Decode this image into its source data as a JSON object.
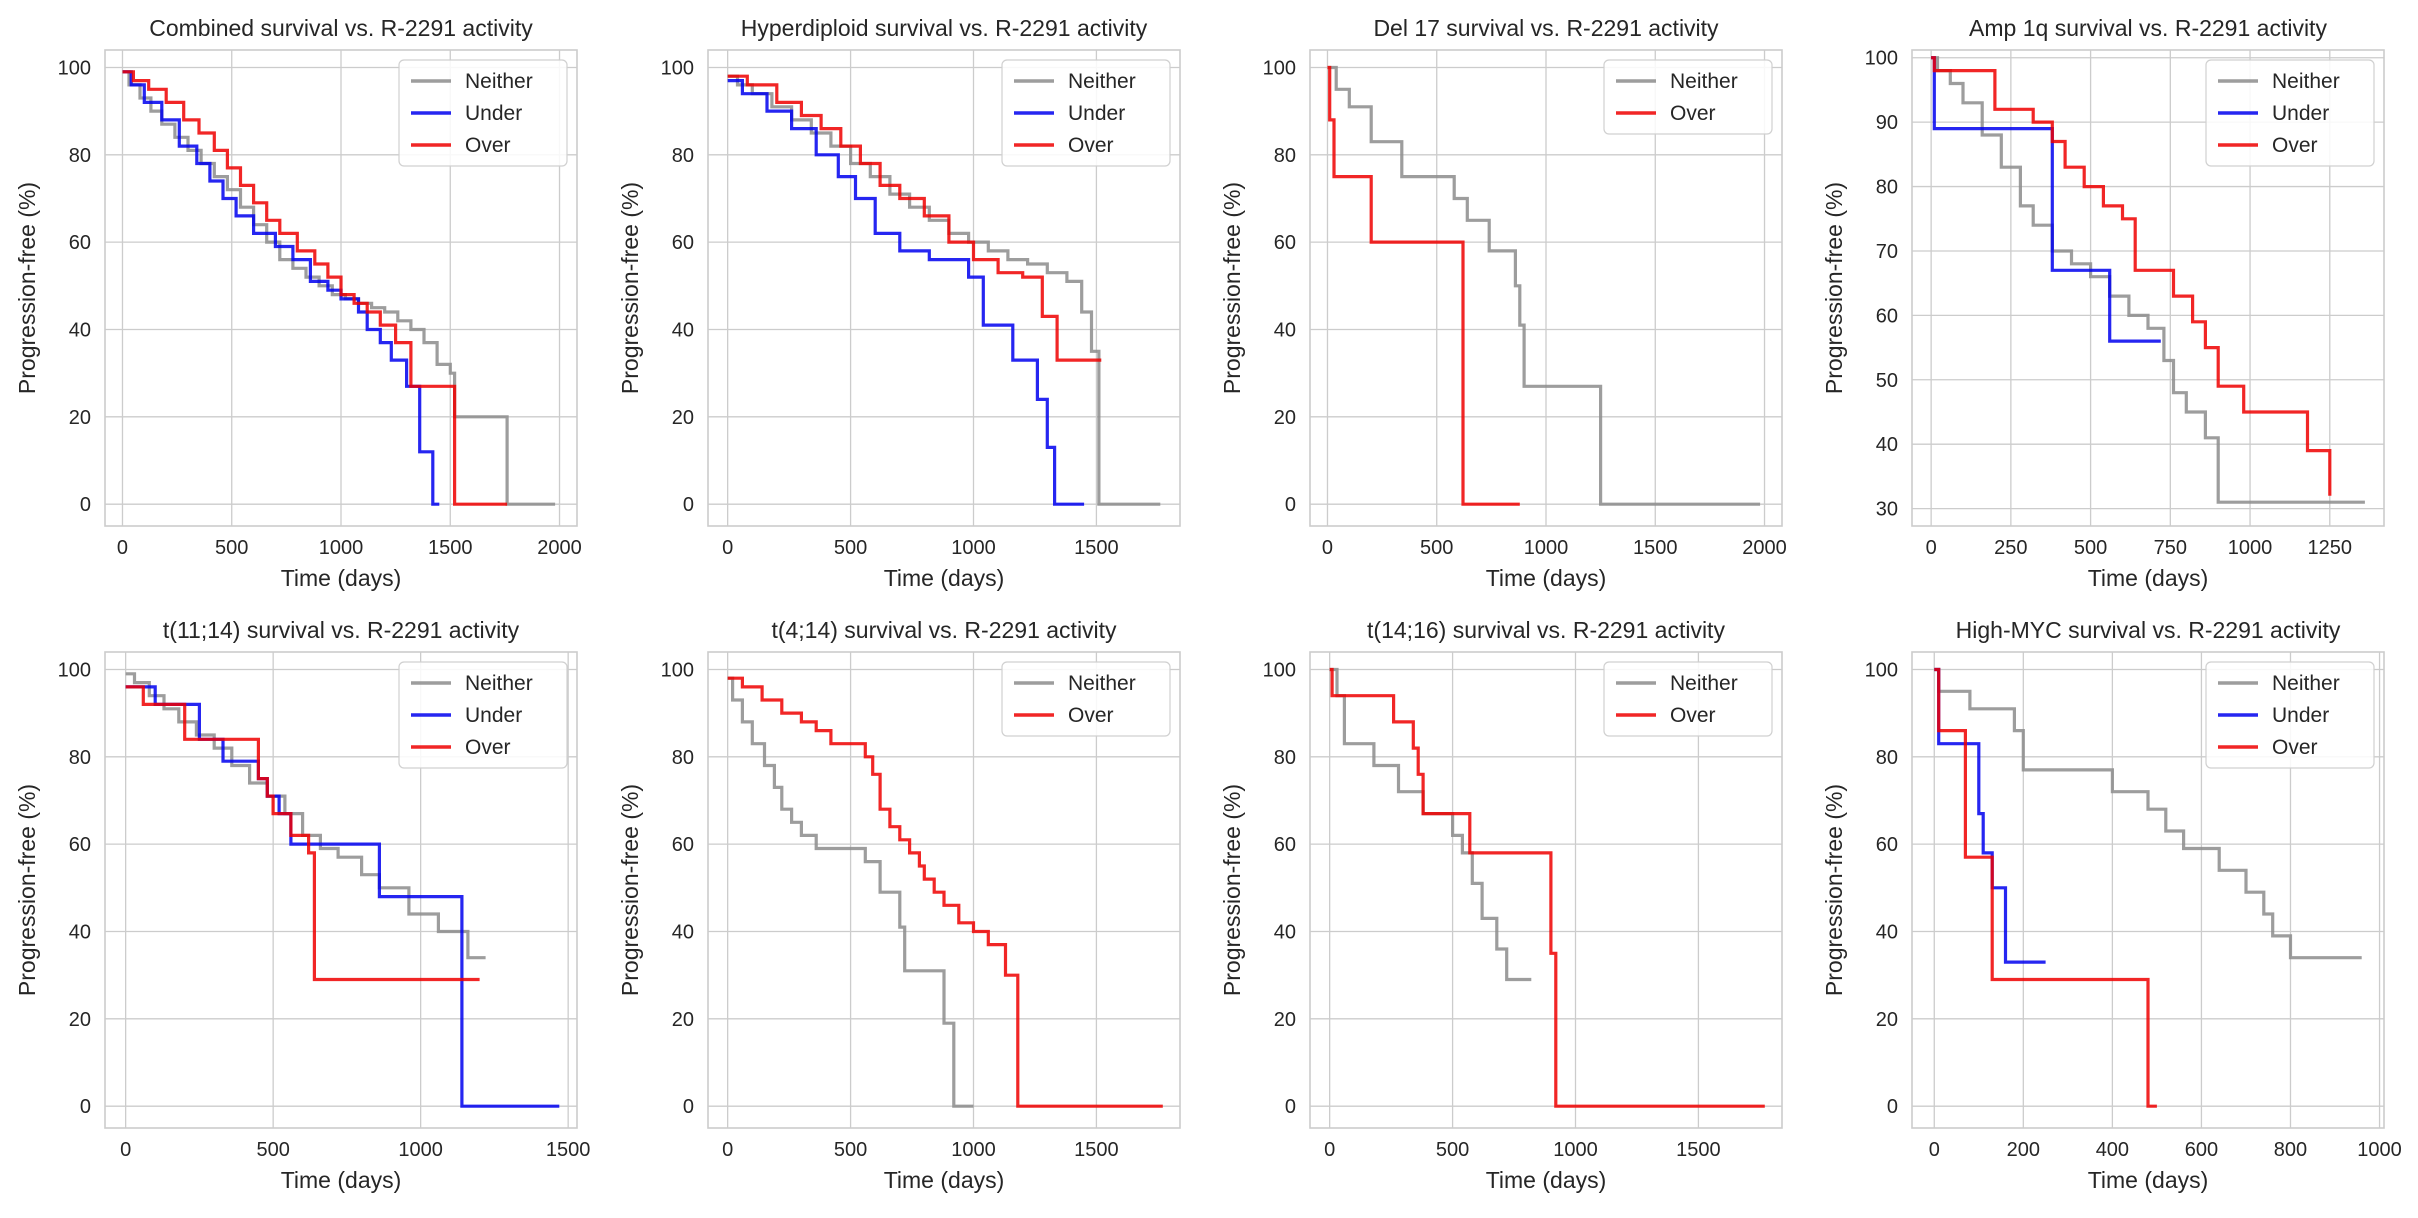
{
  "figure": {
    "background": "#ffffff",
    "grid_color": "#cccccc",
    "frame_color": "#cccccc"
  },
  "colors": {
    "Neither": "#8c8c8c",
    "Under": "#0000ee",
    "Over": "#ee0000"
  },
  "chart_data": [
    {
      "type": "line",
      "step": true,
      "title": "Combined survival vs. R-2291 activity",
      "xlabel": "Time (days)",
      "ylabel": "Progression-free (%)",
      "xlim": [
        -80,
        2080
      ],
      "ylim": [
        -5,
        104
      ],
      "xticks": [
        0,
        500,
        1000,
        1500,
        2000
      ],
      "yticks": [
        0,
        20,
        40,
        60,
        80,
        100
      ],
      "grid": true,
      "legend": "top-right",
      "series": [
        {
          "name": "Neither",
          "x": [
            0,
            30,
            80,
            130,
            180,
            240,
            300,
            360,
            420,
            480,
            540,
            600,
            660,
            720,
            780,
            840,
            900,
            960,
            1020,
            1080,
            1140,
            1200,
            1260,
            1320,
            1380,
            1440,
            1500,
            1520,
            1760,
            1980
          ],
          "y": [
            99,
            96,
            93,
            90,
            87,
            84,
            81,
            78,
            75,
            72,
            68,
            64,
            60,
            56,
            54,
            52,
            50,
            48,
            47,
            46,
            45,
            44,
            42,
            40,
            37,
            32,
            30,
            20,
            0,
            0
          ]
        },
        {
          "name": "Under",
          "x": [
            0,
            40,
            100,
            180,
            260,
            340,
            400,
            460,
            520,
            600,
            700,
            780,
            860,
            940,
            1000,
            1080,
            1120,
            1180,
            1230,
            1300,
            1360,
            1420,
            1450
          ],
          "y": [
            99,
            96,
            92,
            88,
            82,
            78,
            74,
            70,
            66,
            62,
            59,
            56,
            51,
            49,
            47,
            44,
            40,
            37,
            33,
            27,
            12,
            0,
            0
          ]
        },
        {
          "name": "Over",
          "x": [
            0,
            50,
            120,
            200,
            280,
            350,
            420,
            480,
            540,
            600,
            660,
            720,
            800,
            880,
            940,
            1000,
            1060,
            1120,
            1180,
            1250,
            1320,
            1520,
            1760
          ],
          "y": [
            99,
            97,
            95,
            92,
            88,
            85,
            81,
            77,
            73,
            69,
            65,
            62,
            58,
            55,
            52,
            48,
            46,
            44,
            41,
            37,
            27,
            0,
            0
          ]
        }
      ]
    },
    {
      "type": "line",
      "step": true,
      "title": "Hyperdiploid survival vs. R-2291 activity",
      "xlabel": "Time (days)",
      "ylabel": "Progression-free (%)",
      "xlim": [
        -80,
        1840
      ],
      "ylim": [
        -5,
        104
      ],
      "xticks": [
        0,
        500,
        1000,
        1500
      ],
      "yticks": [
        0,
        20,
        40,
        60,
        80,
        100
      ],
      "grid": true,
      "legend": "top-right",
      "series": [
        {
          "name": "Neither",
          "x": [
            0,
            40,
            100,
            180,
            260,
            340,
            420,
            500,
            580,
            660,
            740,
            820,
            900,
            980,
            1060,
            1140,
            1220,
            1300,
            1380,
            1440,
            1480,
            1510,
            1760
          ],
          "y": [
            98,
            96,
            94,
            91,
            88,
            85,
            82,
            78,
            75,
            71,
            68,
            65,
            62,
            60,
            58,
            56,
            55,
            53,
            51,
            44,
            35,
            0,
            0
          ]
        },
        {
          "name": "Under",
          "x": [
            0,
            60,
            160,
            260,
            360,
            450,
            520,
            600,
            700,
            820,
            980,
            1040,
            1160,
            1260,
            1300,
            1330,
            1450
          ],
          "y": [
            97,
            94,
            90,
            86,
            80,
            75,
            70,
            62,
            58,
            56,
            52,
            41,
            33,
            24,
            13,
            0,
            0
          ]
        },
        {
          "name": "Over",
          "x": [
            0,
            80,
            200,
            300,
            380,
            460,
            540,
            620,
            700,
            800,
            900,
            1000,
            1100,
            1200,
            1280,
            1340,
            1440,
            1520
          ],
          "y": [
            98,
            96,
            92,
            89,
            86,
            82,
            78,
            73,
            70,
            66,
            60,
            56,
            53,
            52,
            43,
            33,
            33,
            33
          ]
        }
      ]
    },
    {
      "type": "line",
      "step": true,
      "title": "Del 17 survival vs. R-2291 activity",
      "xlabel": "Time (days)",
      "ylabel": "Progression-free (%)",
      "xlim": [
        -80,
        2080
      ],
      "ylim": [
        -5,
        104
      ],
      "xticks": [
        0,
        500,
        1000,
        1500,
        2000
      ],
      "yticks": [
        0,
        20,
        40,
        60,
        80,
        100
      ],
      "grid": true,
      "legend": "top-right",
      "series": [
        {
          "name": "Neither",
          "x": [
            0,
            40,
            100,
            200,
            340,
            580,
            640,
            740,
            860,
            880,
            900,
            1250,
            1980
          ],
          "y": [
            100,
            95,
            91,
            83,
            75,
            70,
            65,
            58,
            50,
            41,
            27,
            0,
            0
          ]
        },
        {
          "name": "Over",
          "x": [
            0,
            10,
            30,
            200,
            600,
            620,
            880
          ],
          "y": [
            100,
            88,
            75,
            60,
            60,
            0,
            0
          ]
        }
      ]
    },
    {
      "type": "line",
      "step": true,
      "title": "Amp 1q survival vs. R-2291 activity",
      "xlabel": "Time (days)",
      "ylabel": "Progression-free (%)",
      "xlim": [
        -60,
        1420
      ],
      "ylim": [
        27.3,
        101.2
      ],
      "xticks": [
        0,
        250,
        500,
        750,
        1000,
        1250
      ],
      "yticks": [
        30,
        40,
        50,
        60,
        70,
        80,
        90,
        100
      ],
      "grid": true,
      "legend": "top-right",
      "series": [
        {
          "name": "Neither",
          "x": [
            0,
            20,
            60,
            100,
            160,
            220,
            280,
            320,
            380,
            440,
            500,
            560,
            620,
            680,
            730,
            760,
            800,
            860,
            900,
            1360
          ],
          "y": [
            100,
            98,
            96,
            93,
            88,
            83,
            77,
            74,
            70,
            68,
            66,
            63,
            60,
            58,
            53,
            48,
            45,
            41,
            31,
            31
          ]
        },
        {
          "name": "Under",
          "x": [
            0,
            10,
            360,
            380,
            550,
            560,
            720
          ],
          "y": [
            100,
            89,
            89,
            67,
            67,
            56,
            56
          ]
        },
        {
          "name": "Over",
          "x": [
            0,
            10,
            200,
            320,
            380,
            420,
            480,
            540,
            600,
            640,
            760,
            820,
            860,
            900,
            980,
            1180,
            1250
          ],
          "y": [
            100,
            98,
            92,
            90,
            87,
            83,
            80,
            77,
            75,
            67,
            63,
            59,
            55,
            49,
            45,
            39,
            32
          ]
        }
      ]
    },
    {
      "type": "line",
      "step": true,
      "title": "t(11;14) survival vs. R-2291 activity",
      "xlabel": "Time (days)",
      "ylabel": "Progression-free (%)",
      "xlim": [
        -70,
        1530
      ],
      "ylim": [
        -5,
        104
      ],
      "xticks": [
        0,
        500,
        1000,
        1500
      ],
      "yticks": [
        0,
        20,
        40,
        60,
        80,
        100
      ],
      "grid": true,
      "legend": "top-right",
      "series": [
        {
          "name": "Neither",
          "x": [
            0,
            30,
            80,
            130,
            180,
            240,
            300,
            360,
            420,
            480,
            540,
            600,
            660,
            720,
            800,
            860,
            960,
            1060,
            1160,
            1220
          ],
          "y": [
            99,
            97,
            94,
            91,
            88,
            85,
            82,
            78,
            74,
            71,
            67,
            62,
            59,
            57,
            53,
            50,
            44,
            40,
            34,
            34
          ]
        },
        {
          "name": "Under",
          "x": [
            0,
            100,
            250,
            330,
            450,
            480,
            520,
            560,
            860,
            1120,
            1140,
            1470
          ],
          "y": [
            96,
            92,
            84,
            79,
            75,
            71,
            67,
            60,
            48,
            48,
            0,
            0
          ]
        },
        {
          "name": "Over",
          "x": [
            0,
            60,
            200,
            450,
            480,
            500,
            560,
            620,
            640,
            1200
          ],
          "y": [
            96,
            92,
            84,
            75,
            71,
            67,
            62,
            58,
            29,
            29
          ]
        }
      ]
    },
    {
      "type": "line",
      "step": true,
      "title": "t(4;14) survival vs. R-2291 activity",
      "xlabel": "Time (days)",
      "ylabel": "Progression-free (%)",
      "xlim": [
        -80,
        1840
      ],
      "ylim": [
        -5,
        104
      ],
      "xticks": [
        0,
        500,
        1000,
        1500
      ],
      "yticks": [
        0,
        20,
        40,
        60,
        80,
        100
      ],
      "grid": true,
      "legend": "top-right",
      "series": [
        {
          "name": "Neither",
          "x": [
            0,
            20,
            60,
            100,
            150,
            190,
            220,
            260,
            300,
            360,
            420,
            560,
            620,
            700,
            720,
            760,
            880,
            920,
            950,
            1000
          ],
          "y": [
            98,
            93,
            88,
            83,
            78,
            73,
            68,
            65,
            62,
            59,
            59,
            56,
            49,
            41,
            31,
            31,
            19,
            0,
            0,
            0
          ]
        },
        {
          "name": "Over",
          "x": [
            0,
            60,
            140,
            220,
            300,
            360,
            420,
            560,
            590,
            620,
            660,
            700,
            740,
            780,
            800,
            840,
            880,
            940,
            1000,
            1060,
            1130,
            1180,
            1770
          ],
          "y": [
            98,
            96,
            93,
            90,
            88,
            86,
            83,
            80,
            76,
            68,
            64,
            61,
            58,
            55,
            52,
            49,
            46,
            42,
            40,
            37,
            30,
            0,
            0
          ]
        }
      ]
    },
    {
      "type": "line",
      "step": true,
      "title": "t(14;16) survival vs. R-2291 activity",
      "xlabel": "Time (days)",
      "ylabel": "Progression-free (%)",
      "xlim": [
        -80,
        1840
      ],
      "ylim": [
        -5,
        104
      ],
      "xticks": [
        0,
        500,
        1000,
        1500
      ],
      "yticks": [
        0,
        20,
        40,
        60,
        80,
        100
      ],
      "grid": true,
      "legend": "top-right",
      "series": [
        {
          "name": "Neither",
          "x": [
            0,
            30,
            60,
            180,
            280,
            380,
            500,
            540,
            580,
            620,
            680,
            720,
            820
          ],
          "y": [
            100,
            94,
            83,
            78,
            72,
            67,
            62,
            58,
            51,
            43,
            36,
            29,
            29
          ]
        },
        {
          "name": "Over",
          "x": [
            0,
            10,
            260,
            340,
            360,
            380,
            570,
            860,
            900,
            920,
            1770
          ],
          "y": [
            100,
            94,
            88,
            82,
            76,
            67,
            58,
            58,
            35,
            0,
            0
          ]
        }
      ]
    },
    {
      "type": "line",
      "step": true,
      "title": "High-MYC survival vs. R-2291 activity",
      "xlabel": "Time (days)",
      "ylabel": "Progression-free (%)",
      "xlim": [
        -50,
        1010
      ],
      "ylim": [
        -5,
        104
      ],
      "xticks": [
        0,
        200,
        400,
        600,
        800,
        1000
      ],
      "yticks": [
        0,
        20,
        40,
        60,
        80,
        100
      ],
      "grid": true,
      "legend": "top-right",
      "series": [
        {
          "name": "Neither",
          "x": [
            0,
            10,
            80,
            180,
            200,
            400,
            480,
            520,
            560,
            640,
            700,
            740,
            760,
            800,
            960
          ],
          "y": [
            100,
            95,
            91,
            86,
            77,
            72,
            68,
            63,
            59,
            54,
            49,
            44,
            39,
            34,
            34
          ]
        },
        {
          "name": "Under",
          "x": [
            0,
            10,
            100,
            110,
            130,
            160,
            250
          ],
          "y": [
            100,
            83,
            67,
            58,
            50,
            33,
            33
          ]
        },
        {
          "name": "Over",
          "x": [
            0,
            10,
            70,
            130,
            480,
            500
          ],
          "y": [
            100,
            86,
            57,
            29,
            0,
            0
          ]
        }
      ]
    }
  ]
}
